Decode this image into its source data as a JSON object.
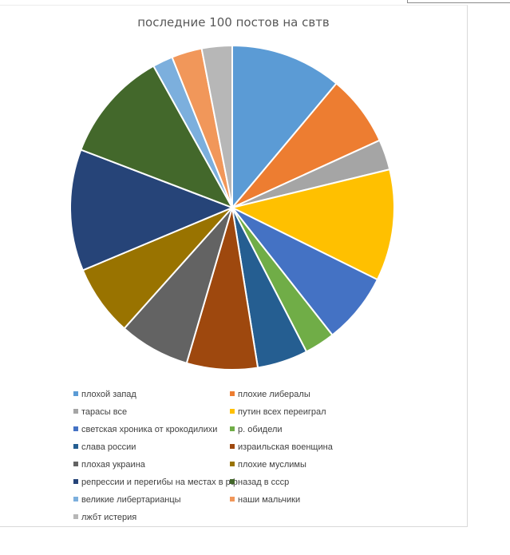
{
  "chart_data": {
    "type": "pie",
    "title": "последние 100 постов на свтв",
    "categories": [
      "плохой запад",
      "плохие либералы",
      "тарасы все",
      "путин всех переиграл",
      "светская хроника  от крокодилихи",
      "р. обидели",
      "слава россии",
      "израильская военщина",
      "плохая украина",
      "плохие муслимы",
      "репрессии и перегибы на местах в рф",
      "назад в ссср",
      "великие либертарианцы",
      "наши мальчики",
      "лжбт истерия"
    ],
    "values": [
      11,
      7,
      3,
      11,
      7,
      3,
      5,
      7,
      7,
      7,
      12,
      11,
      2,
      3,
      3
    ],
    "colors": [
      "#5b9bd5",
      "#ed7d31",
      "#a5a5a5",
      "#ffc000",
      "#4472c4",
      "#70ad47",
      "#255e91",
      "#9e480e",
      "#636363",
      "#997300",
      "#264478",
      "#43682b",
      "#7cafdd",
      "#f1975a",
      "#b7b7b7"
    ],
    "legend_position": "bottom",
    "legend_columns": 2
  }
}
